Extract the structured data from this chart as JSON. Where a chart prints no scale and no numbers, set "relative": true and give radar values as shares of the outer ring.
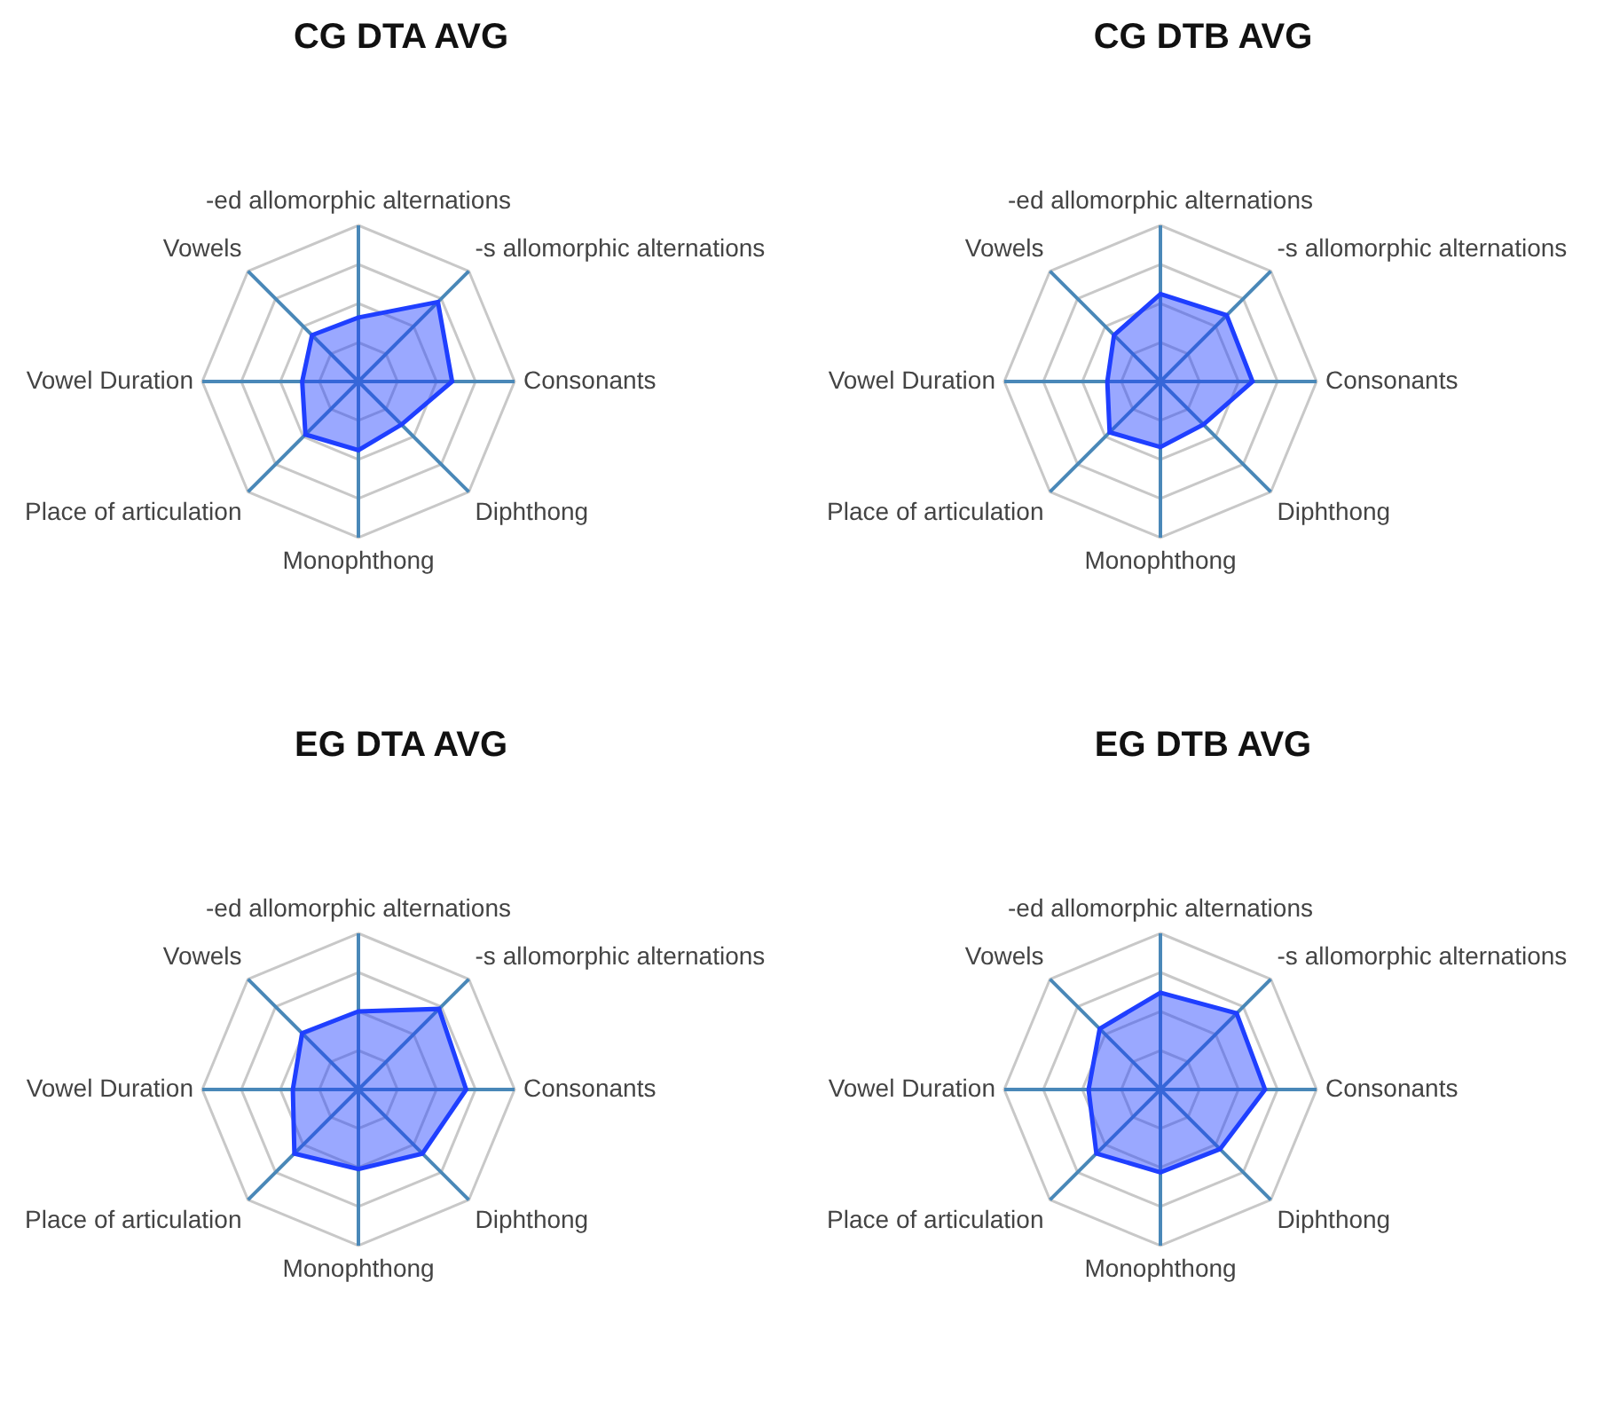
{
  "chart_data": [
    {
      "type": "radar",
      "title": "CG DTA AVG",
      "categories": [
        "-ed allomorphic alternations",
        "-s allomorphic alternations",
        "Consonants",
        "Diphthong",
        "Monophthong",
        "Place of articulation",
        "Vowel Duration",
        "Vowels"
      ],
      "relative": true,
      "grid": true,
      "series": [
        {
          "color": "#1f3fff",
          "values": [
            0.41,
            0.72,
            0.6,
            0.39,
            0.44,
            0.48,
            0.36,
            0.42
          ]
        }
      ]
    },
    {
      "type": "radar",
      "title": "CG DTB AVG",
      "categories": [
        "-ed allomorphic alternations",
        "-s allomorphic alternations",
        "Consonants",
        "Diphthong",
        "Monophthong",
        "Place of articulation",
        "Vowel Duration",
        "Vowels"
      ],
      "relative": true,
      "grid": true,
      "series": [
        {
          "color": "#1f3fff",
          "values": [
            0.56,
            0.6,
            0.59,
            0.39,
            0.42,
            0.46,
            0.34,
            0.42
          ]
        }
      ]
    },
    {
      "type": "radar",
      "title": "EG DTA AVG",
      "categories": [
        "-ed allomorphic alternations",
        "-s allomorphic alternations",
        "Consonants",
        "Diphthong",
        "Monophthong",
        "Place of articulation",
        "Vowel Duration",
        "Vowels"
      ],
      "relative": true,
      "grid": true,
      "series": [
        {
          "color": "#1f3fff",
          "values": [
            0.5,
            0.73,
            0.69,
            0.58,
            0.51,
            0.58,
            0.42,
            0.51
          ]
        }
      ]
    },
    {
      "type": "radar",
      "title": "EG DTB AVG",
      "categories": [
        "-ed allomorphic alternations",
        "-s allomorphic alternations",
        "Consonants",
        "Diphthong",
        "Monophthong",
        "Place of articulation",
        "Vowel Duration",
        "Vowels"
      ],
      "relative": true,
      "grid": true,
      "series": [
        {
          "color": "#1f3fff",
          "values": [
            0.62,
            0.69,
            0.67,
            0.54,
            0.53,
            0.58,
            0.46,
            0.55
          ]
        }
      ]
    }
  ]
}
